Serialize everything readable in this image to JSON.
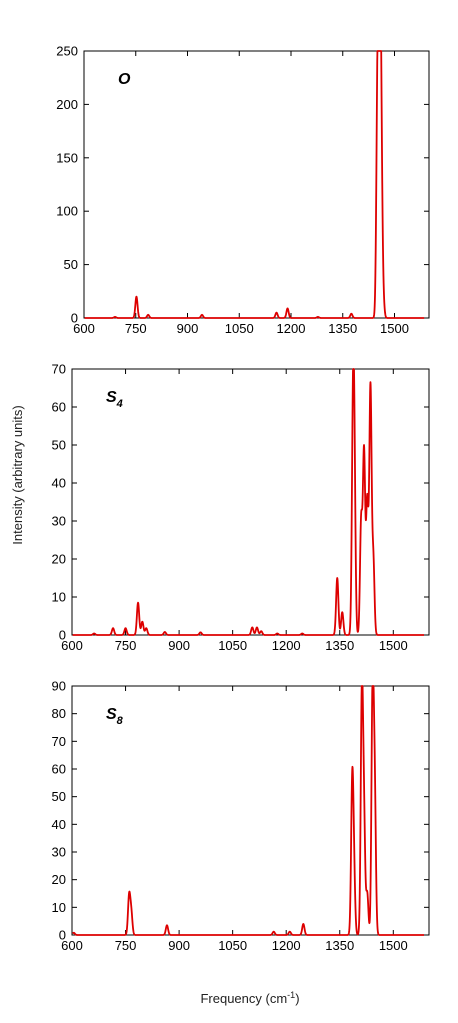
{
  "figure": {
    "ylabel": "Intensity (arbitrary units)",
    "xlabel": "Frequency (cm",
    "xlabel_sup": "-1",
    "xlabel_end": ")"
  },
  "chart_data": [
    {
      "type": "line",
      "panel_label": "O",
      "panel_label_sub": "",
      "color": "#dd0000",
      "xlim": [
        600,
        1600
      ],
      "ylim": [
        0,
        250
      ],
      "xticks": [
        600,
        750,
        900,
        1050,
        1200,
        1350,
        1500
      ],
      "yticks": [
        0,
        50,
        100,
        150,
        200,
        250
      ],
      "grid": false,
      "series": [
        {
          "peaks": [
            {
              "x": 690,
              "y": 1
            },
            {
              "x": 752,
              "y": 20
            },
            {
              "x": 786,
              "y": 3
            },
            {
              "x": 942,
              "y": 3
            },
            {
              "x": 1158,
              "y": 5
            },
            {
              "x": 1190,
              "y": 9
            },
            {
              "x": 1278,
              "y": 1
            },
            {
              "x": 1375,
              "y": 4
            },
            {
              "x": 1450,
              "y": 165
            },
            {
              "x": 1455,
              "y": 245
            },
            {
              "x": 1459,
              "y": 200
            },
            {
              "x": 1463,
              "y": 80
            },
            {
              "x": 1468,
              "y": 12
            }
          ]
        }
      ]
    },
    {
      "type": "line",
      "panel_label": "S",
      "panel_label_sub": "4",
      "color": "#dd0000",
      "xlim": [
        600,
        1600
      ],
      "ylim": [
        0,
        70
      ],
      "xticks": [
        600,
        750,
        900,
        1050,
        1200,
        1350,
        1500
      ],
      "yticks": [
        0,
        10,
        20,
        30,
        40,
        50,
        60,
        70
      ],
      "grid": false,
      "series": [
        {
          "peaks": [
            {
              "x": 662,
              "y": 0.4
            },
            {
              "x": 715,
              "y": 1.8
            },
            {
              "x": 750,
              "y": 1.8
            },
            {
              "x": 785,
              "y": 8.5
            },
            {
              "x": 797,
              "y": 3.5
            },
            {
              "x": 808,
              "y": 1.8
            },
            {
              "x": 860,
              "y": 0.8
            },
            {
              "x": 960,
              "y": 0.7
            },
            {
              "x": 1105,
              "y": 2
            },
            {
              "x": 1118,
              "y": 2
            },
            {
              "x": 1130,
              "y": 1
            },
            {
              "x": 1175,
              "y": 0.4
            },
            {
              "x": 1245,
              "y": 0.4
            },
            {
              "x": 1343,
              "y": 15
            },
            {
              "x": 1357,
              "y": 6
            },
            {
              "x": 1387,
              "y": 52
            },
            {
              "x": 1391,
              "y": 38
            },
            {
              "x": 1410,
              "y": 30
            },
            {
              "x": 1418,
              "y": 48
            },
            {
              "x": 1427,
              "y": 35
            },
            {
              "x": 1436,
              "y": 65
            },
            {
              "x": 1444,
              "y": 20
            }
          ]
        }
      ]
    },
    {
      "type": "line",
      "panel_label": "S",
      "panel_label_sub": "8",
      "color": "#dd0000",
      "xlim": [
        600,
        1600
      ],
      "ylim": [
        0,
        90
      ],
      "xticks": [
        600,
        750,
        900,
        1050,
        1200,
        1350,
        1500
      ],
      "yticks": [
        0,
        10,
        20,
        30,
        40,
        50,
        60,
        70,
        80,
        90
      ],
      "grid": false,
      "series": [
        {
          "peaks": [
            {
              "x": 605,
              "y": 0.8
            },
            {
              "x": 760,
              "y": 14
            },
            {
              "x": 766,
              "y": 8
            },
            {
              "x": 866,
              "y": 3.5
            },
            {
              "x": 1165,
              "y": 1.2
            },
            {
              "x": 1210,
              "y": 1.2
            },
            {
              "x": 1248,
              "y": 4
            },
            {
              "x": 1385,
              "y": 54
            },
            {
              "x": 1390,
              "y": 20
            },
            {
              "x": 1412,
              "y": 87
            },
            {
              "x": 1418,
              "y": 40
            },
            {
              "x": 1427,
              "y": 15
            },
            {
              "x": 1442,
              "y": 88
            },
            {
              "x": 1448,
              "y": 50
            }
          ]
        }
      ]
    }
  ]
}
